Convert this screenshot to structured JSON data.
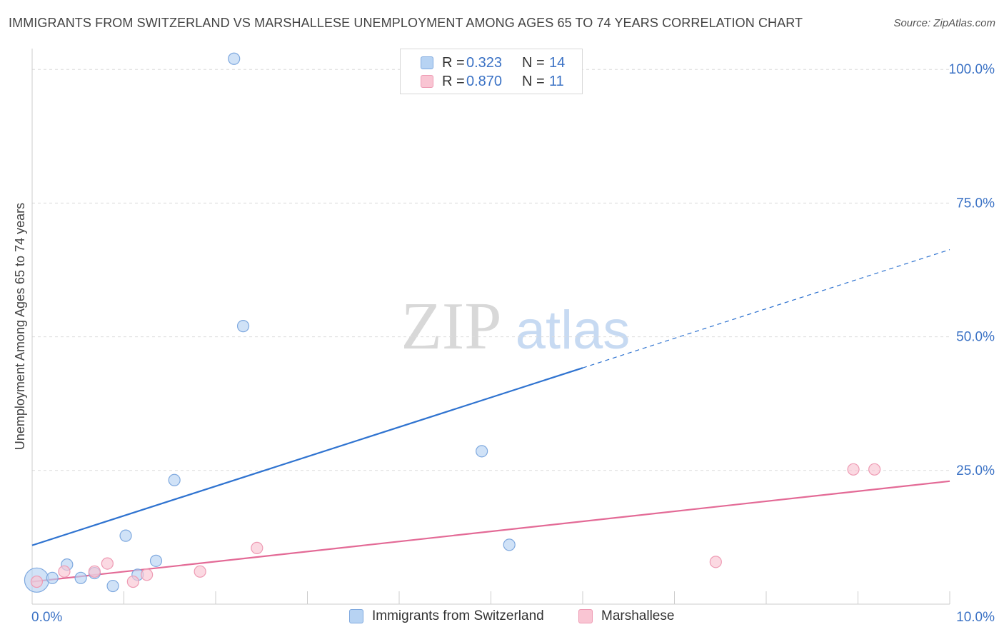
{
  "header": {
    "title": "IMMIGRANTS FROM SWITZERLAND VS MARSHALLESE UNEMPLOYMENT AMONG AGES 65 TO 74 YEARS CORRELATION CHART",
    "source": "Source: ZipAtlas.com"
  },
  "watermark": {
    "zip": "ZIP",
    "atlas": "atlas"
  },
  "legend": {
    "rows": [
      {
        "r_label": "R =",
        "r_value": "0.323",
        "n_label": "N =",
        "n_value": "14"
      },
      {
        "r_label": "R =",
        "r_value": "0.870",
        "n_label": "N =",
        "n_value": "11"
      }
    ]
  },
  "colors": {
    "switzerland_fill": "#b7d3f3",
    "switzerland_stroke": "#7fa9df",
    "switzerland_line": "#2f73d0",
    "marshallese_fill": "#f9c5d3",
    "marshallese_stroke": "#ee9ab3",
    "marshallese_line": "#e36a96",
    "axis_label": "#3b72c5",
    "grid": "#dcdcdc"
  },
  "chart_data": {
    "type": "scatter",
    "title": "IMMIGRANTS FROM SWITZERLAND VS MARSHALLESE UNEMPLOYMENT AMONG AGES 65 TO 74 YEARS CORRELATION CHART",
    "xlabel": "",
    "ylabel": "Unemployment Among Ages 65 to 74 years",
    "xlim": [
      0,
      10
    ],
    "ylim": [
      0,
      100
    ],
    "x_tick_labels": [
      "0.0%",
      "10.0%"
    ],
    "y_ticks": [
      100,
      75,
      50,
      25
    ],
    "y_tick_labels": [
      "100.0%",
      "75.0%",
      "50.0%",
      "25.0%"
    ],
    "grid": true,
    "legend_placement": "top-center",
    "series": [
      {
        "name": "Immigrants from Switzerland",
        "r": 0.323,
        "n": 14,
        "points": [
          {
            "x": 0.05,
            "y": 4.5
          },
          {
            "x": 0.22,
            "y": 4.9
          },
          {
            "x": 0.38,
            "y": 7.4
          },
          {
            "x": 0.53,
            "y": 4.9
          },
          {
            "x": 0.68,
            "y": 5.8
          },
          {
            "x": 0.88,
            "y": 3.4
          },
          {
            "x": 1.02,
            "y": 12.8
          },
          {
            "x": 1.15,
            "y": 5.5
          },
          {
            "x": 1.35,
            "y": 8.1
          },
          {
            "x": 1.55,
            "y": 23.2
          },
          {
            "x": 2.2,
            "y": 102.0
          },
          {
            "x": 2.3,
            "y": 52.0
          },
          {
            "x": 4.9,
            "y": 28.6
          },
          {
            "x": 5.2,
            "y": 11.1
          }
        ],
        "trend": {
          "x0": 0,
          "y0": 11.0,
          "x1": 10,
          "y1": 66.3,
          "solid_until_x": 6.0
        }
      },
      {
        "name": "Marshallese",
        "r": 0.87,
        "n": 11,
        "points": [
          {
            "x": 0.05,
            "y": 4.2
          },
          {
            "x": 0.35,
            "y": 6.1
          },
          {
            "x": 0.68,
            "y": 6.1
          },
          {
            "x": 0.82,
            "y": 7.6
          },
          {
            "x": 1.1,
            "y": 4.2
          },
          {
            "x": 1.25,
            "y": 5.5
          },
          {
            "x": 1.83,
            "y": 6.1
          },
          {
            "x": 2.45,
            "y": 10.5
          },
          {
            "x": 7.45,
            "y": 7.9
          },
          {
            "x": 8.95,
            "y": 25.2
          },
          {
            "x": 9.18,
            "y": 25.2
          }
        ],
        "trend": {
          "x0": 0,
          "y0": 4.2,
          "x1": 10,
          "y1": 23.0,
          "solid_until_x": 10
        }
      }
    ]
  },
  "bottom_legend": {
    "items": [
      {
        "label": "Immigrants from Switzerland"
      },
      {
        "label": "Marshallese"
      }
    ]
  }
}
